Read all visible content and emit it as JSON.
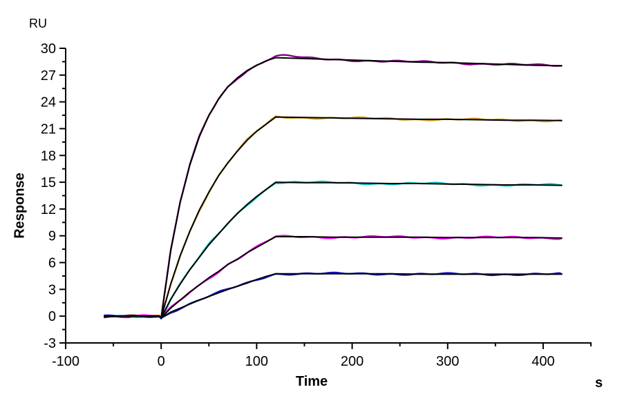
{
  "labels": {
    "y_unit": "RU",
    "y_title": "Response",
    "x_title": "Time",
    "x_unit": "s"
  },
  "colors": {
    "axis": "#000000",
    "fit_line": "#000000",
    "background": "#ffffff"
  },
  "chart_data": {
    "type": "line",
    "title": "",
    "xlabel": "Time",
    "x_unit": "s",
    "ylabel": "Response",
    "y_unit": "RU",
    "xlim": [
      -100,
      450
    ],
    "ylim": [
      -3,
      30
    ],
    "grid": false,
    "legend": "none",
    "x_major_ticks": [
      -100,
      0,
      100,
      200,
      300,
      400
    ],
    "x_minor_ticks": [
      -50,
      50,
      150,
      250,
      350,
      450
    ],
    "y_major_ticks": [
      30,
      27,
      24,
      21,
      18,
      15,
      12,
      9,
      6,
      3,
      0,
      -3
    ],
    "y_minor_ticks": [
      28.5,
      25.5,
      22.5,
      19.5,
      16.5,
      13.5,
      10.5,
      7.5,
      4.5,
      1.5,
      -1.5
    ],
    "fit_color": "#000000",
    "series": [
      {
        "name": "series-1",
        "color": "#8B008B",
        "points": [
          [
            -60,
            -0.1
          ],
          [
            -50,
            -0.05
          ],
          [
            -40,
            0
          ],
          [
            -30,
            0
          ],
          [
            -20,
            0
          ],
          [
            -10,
            0
          ],
          [
            -2,
            0
          ],
          [
            0,
            -0.2
          ],
          [
            10,
            7.3
          ],
          [
            20,
            12.8
          ],
          [
            30,
            16.9
          ],
          [
            40,
            20.1
          ],
          [
            50,
            22.5
          ],
          [
            60,
            24.3
          ],
          [
            70,
            25.7
          ],
          [
            80,
            26.7
          ],
          [
            90,
            27.5
          ],
          [
            100,
            28.1
          ],
          [
            110,
            28.6
          ],
          [
            120,
            28.95
          ],
          [
            135,
            28.9
          ],
          [
            150,
            28.85
          ],
          [
            180,
            28.75
          ],
          [
            210,
            28.65
          ],
          [
            240,
            28.55
          ],
          [
            270,
            28.45
          ],
          [
            300,
            28.4
          ],
          [
            330,
            28.3
          ],
          [
            360,
            28.2
          ],
          [
            390,
            28.1
          ],
          [
            420,
            28.05
          ]
        ]
      },
      {
        "name": "series-2",
        "color": "#D9A520",
        "points": [
          [
            -60,
            -0.05
          ],
          [
            -50,
            0
          ],
          [
            -40,
            0
          ],
          [
            -30,
            0
          ],
          [
            -20,
            0
          ],
          [
            -10,
            0
          ],
          [
            -2,
            0
          ],
          [
            0,
            -0.2
          ],
          [
            10,
            3.6
          ],
          [
            20,
            6.8
          ],
          [
            30,
            9.5
          ],
          [
            40,
            11.9
          ],
          [
            50,
            13.9
          ],
          [
            60,
            15.7
          ],
          [
            70,
            17.2
          ],
          [
            80,
            18.5
          ],
          [
            90,
            19.7
          ],
          [
            100,
            20.7
          ],
          [
            110,
            21.5
          ],
          [
            120,
            22.3
          ],
          [
            150,
            22.25
          ],
          [
            180,
            22.2
          ],
          [
            210,
            22.15
          ],
          [
            240,
            22.1
          ],
          [
            270,
            22.05
          ],
          [
            300,
            22.05
          ],
          [
            330,
            22.0
          ],
          [
            360,
            21.95
          ],
          [
            390,
            21.95
          ],
          [
            420,
            21.9
          ]
        ]
      },
      {
        "name": "series-3",
        "color": "#00C8C8",
        "points": [
          [
            -60,
            -0.05
          ],
          [
            -50,
            0
          ],
          [
            -40,
            0
          ],
          [
            -30,
            0
          ],
          [
            -20,
            0
          ],
          [
            -10,
            0
          ],
          [
            -2,
            0
          ],
          [
            0,
            -0.2
          ],
          [
            10,
            1.9
          ],
          [
            20,
            3.6
          ],
          [
            30,
            5.2
          ],
          [
            40,
            6.6
          ],
          [
            50,
            8.0
          ],
          [
            60,
            9.2
          ],
          [
            70,
            10.4
          ],
          [
            80,
            11.5
          ],
          [
            90,
            12.5
          ],
          [
            100,
            13.4
          ],
          [
            110,
            14.2
          ],
          [
            120,
            15.0
          ],
          [
            150,
            14.95
          ],
          [
            180,
            14.95
          ],
          [
            210,
            14.9
          ],
          [
            240,
            14.85
          ],
          [
            270,
            14.85
          ],
          [
            300,
            14.8
          ],
          [
            330,
            14.75
          ],
          [
            360,
            14.7
          ],
          [
            390,
            14.7
          ],
          [
            420,
            14.65
          ]
        ]
      },
      {
        "name": "series-4",
        "color": "#FF00FF",
        "points": [
          [
            -60,
            -0.05
          ],
          [
            -50,
            0
          ],
          [
            -40,
            0
          ],
          [
            -30,
            0
          ],
          [
            -20,
            0
          ],
          [
            -10,
            0
          ],
          [
            -2,
            0
          ],
          [
            0,
            -0.2
          ],
          [
            10,
            0.9
          ],
          [
            20,
            1.8
          ],
          [
            30,
            2.7
          ],
          [
            40,
            3.5
          ],
          [
            50,
            4.3
          ],
          [
            60,
            5.0
          ],
          [
            70,
            5.8
          ],
          [
            80,
            6.4
          ],
          [
            90,
            7.1
          ],
          [
            100,
            7.7
          ],
          [
            110,
            8.3
          ],
          [
            120,
            8.9
          ],
          [
            150,
            8.9
          ],
          [
            180,
            8.85
          ],
          [
            210,
            8.85
          ],
          [
            240,
            8.85
          ],
          [
            270,
            8.85
          ],
          [
            300,
            8.8
          ],
          [
            330,
            8.8
          ],
          [
            360,
            8.8
          ],
          [
            390,
            8.8
          ],
          [
            420,
            8.75
          ]
        ]
      },
      {
        "name": "series-5",
        "color": "#1212CC",
        "points": [
          [
            -60,
            -0.05
          ],
          [
            -50,
            0
          ],
          [
            -40,
            0
          ],
          [
            -30,
            0
          ],
          [
            -20,
            0
          ],
          [
            -10,
            0
          ],
          [
            -2,
            0
          ],
          [
            0,
            -0.2
          ],
          [
            10,
            0.45
          ],
          [
            20,
            0.9
          ],
          [
            30,
            1.35
          ],
          [
            40,
            1.8
          ],
          [
            50,
            2.2
          ],
          [
            60,
            2.6
          ],
          [
            70,
            3.0
          ],
          [
            80,
            3.35
          ],
          [
            90,
            3.7
          ],
          [
            100,
            4.1
          ],
          [
            110,
            4.45
          ],
          [
            120,
            4.75
          ],
          [
            150,
            4.75
          ],
          [
            180,
            4.75
          ],
          [
            210,
            4.75
          ],
          [
            240,
            4.75
          ],
          [
            270,
            4.7
          ],
          [
            300,
            4.7
          ],
          [
            330,
            4.7
          ],
          [
            360,
            4.7
          ],
          [
            390,
            4.7
          ],
          [
            420,
            4.7
          ]
        ]
      }
    ]
  }
}
